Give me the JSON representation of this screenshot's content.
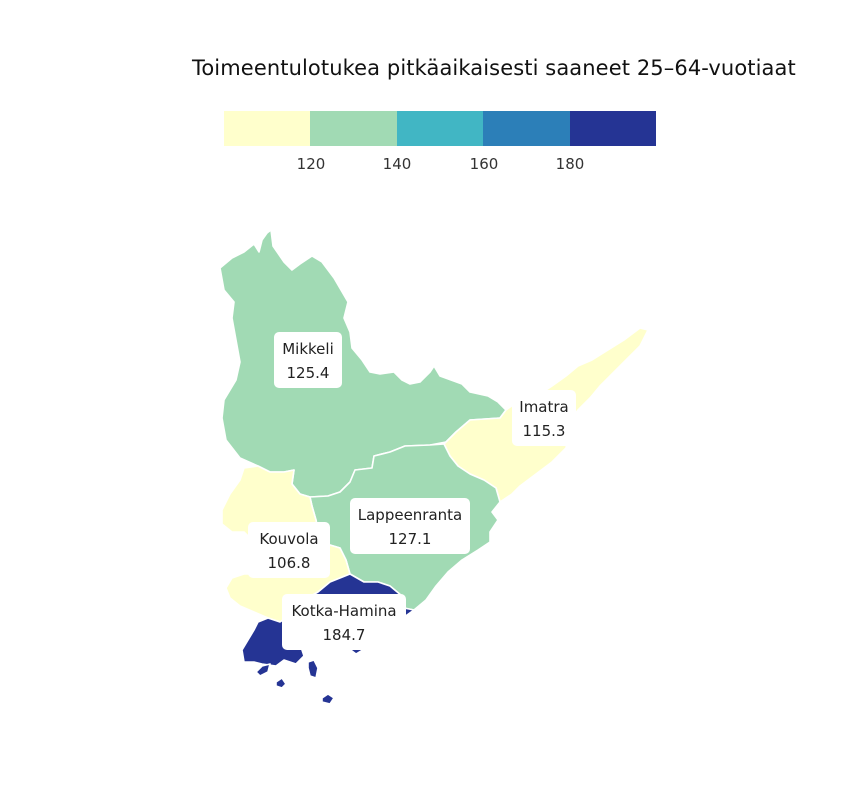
{
  "title": "Toimeentulotukea pitkäaikaisesti saaneet 25–64-vuotiaat",
  "legend": {
    "colors": [
      "#ffffcc",
      "#a1dab4",
      "#41b6c4",
      "#2c7fb8",
      "#253494"
    ],
    "ticks": [
      "120",
      "140",
      "160",
      "180"
    ]
  },
  "regions": [
    {
      "name": "Mikkeli",
      "value": "125.4",
      "color": "#a1dab4"
    },
    {
      "name": "Imatra",
      "value": "115.3",
      "color": "#ffffcc"
    },
    {
      "name": "Lappeenranta",
      "value": "127.1",
      "color": "#a1dab4"
    },
    {
      "name": "Kouvola",
      "value": "106.8",
      "color": "#ffffcc"
    },
    {
      "name": "Kotka-Hamina",
      "value": "184.7",
      "color": "#253494"
    }
  ]
}
